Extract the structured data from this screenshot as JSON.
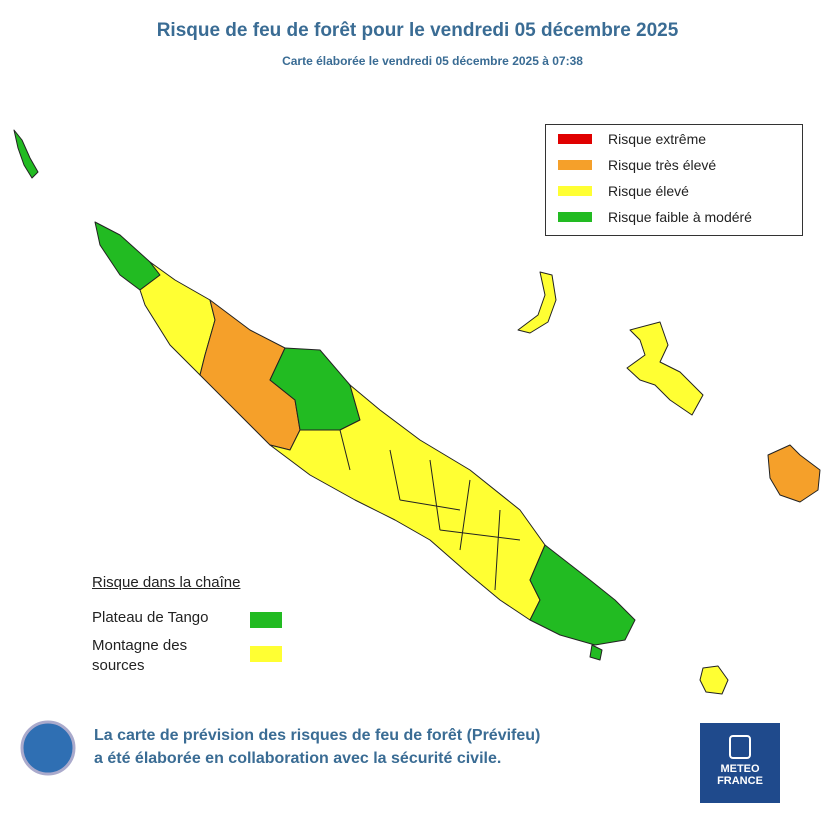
{
  "title": "Risque de feu de forêt pour le vendredi 05 décembre 2025",
  "subtitle": "Carte élaborée le vendredi 05 décembre 2025 à 07:38",
  "legend": {
    "items": [
      {
        "label": "Risque extrême",
        "color": "#e00000"
      },
      {
        "label": "Risque très élevé",
        "color": "#f5a02a"
      },
      {
        "label": "Risque élevé",
        "color": "#ffff33"
      },
      {
        "label": "Risque faible à modéré",
        "color": "#22bb22"
      }
    ]
  },
  "chain": {
    "title": "Risque dans la chaîne",
    "items": [
      {
        "label": "Plateau de Tango",
        "color": "#22bb22"
      },
      {
        "label": "Montagne des sources",
        "color": "#ffff33"
      }
    ]
  },
  "footer": {
    "lines": [
      "La carte de prévision des risques de feu de forêt (Prévifeu)",
      "a été élaborée en collaboration avec la sécurité civile."
    ]
  },
  "logo": {
    "lines": [
      "METEO",
      "FRANCE"
    ]
  }
}
